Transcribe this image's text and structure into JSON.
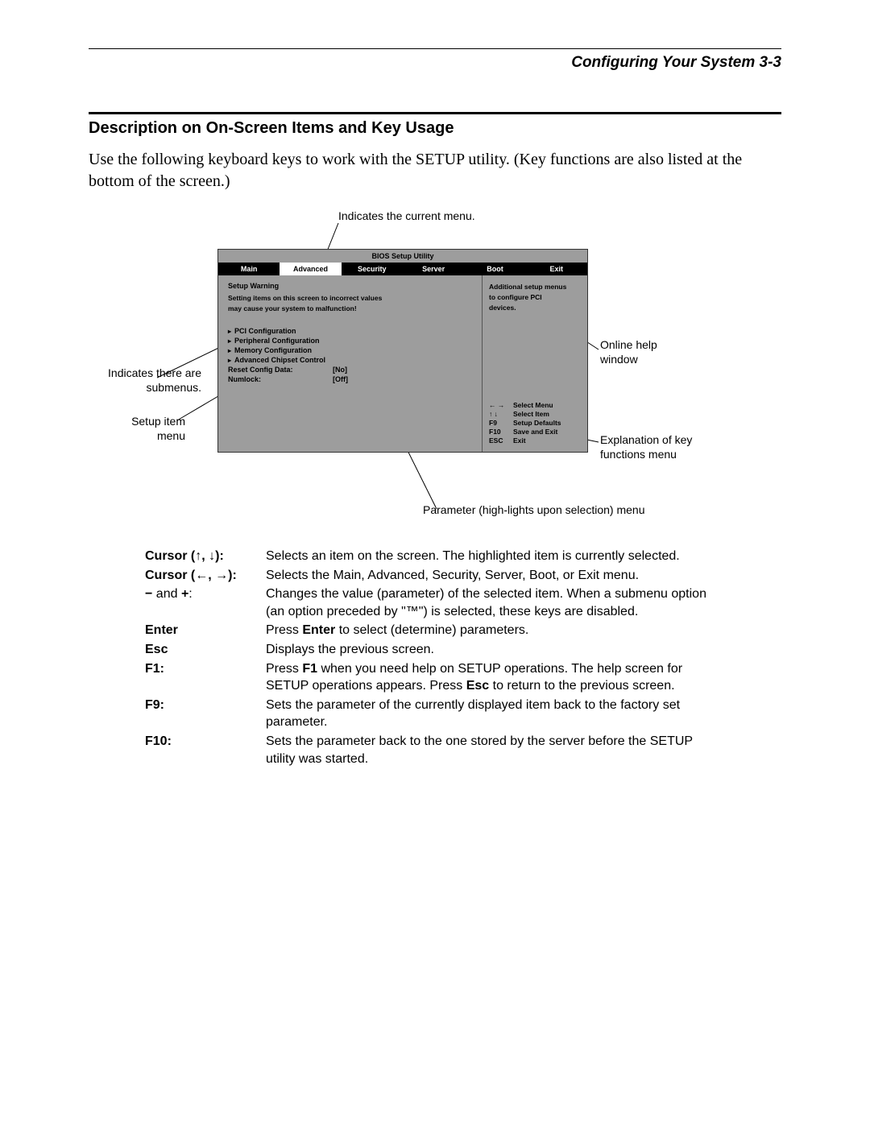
{
  "header": {
    "title": "Configuring Your System  3-3"
  },
  "section": {
    "title": "Description on On-Screen Items and Key Usage",
    "intro": "Use the following keyboard keys to work with the SETUP utility.  (Key functions are also listed at the bottom of the screen.)"
  },
  "callouts": {
    "top": "Indicates the current menu.",
    "submenus": "Indicates there are submenus.",
    "setup_item": "Setup item menu",
    "online_help": "Online help window",
    "keyfunc": "Explanation of key functions menu",
    "param": "Parameter (high-lights upon selection) menu"
  },
  "bios": {
    "title": "BIOS Setup Utility",
    "tabs": [
      "Main",
      "Advanced",
      "Security",
      "Server",
      "Boot",
      "Exit"
    ],
    "selected_tab_index": 1,
    "warn_title": "Setup Warning",
    "warn_text1": "Setting items on this screen to incorrect values",
    "warn_text2": "may cause your system to malfunction!",
    "items": [
      "PCI Configuration",
      "Peripheral Configuration",
      "Memory Configuration",
      "Advanced Chipset Control"
    ],
    "rows": [
      {
        "k": "Reset Config Data:",
        "v": "[No]"
      },
      {
        "k": "Numlock:",
        "v": "[Off]"
      }
    ],
    "help_top1": "Additional setup menus",
    "help_top2": "to configure PCI",
    "help_top3": "devices.",
    "keys": [
      {
        "kk": "← →",
        "kv": "Select Menu"
      },
      {
        "kk": "↑ ↓",
        "kv": "Select Item"
      },
      {
        "kk": "F9",
        "kv": "Setup Defaults"
      },
      {
        "kk": "F10",
        "kv": "Save and Exit"
      },
      {
        "kk": "ESC",
        "kv": "Exit"
      }
    ]
  },
  "key_table": [
    {
      "k": "Cursor (↑, ↓):",
      "v": "Selects an item on the screen.  The highlighted item is currently selected."
    },
    {
      "k": "Cursor (←, →):",
      "v": "Selects the Main, Advanced, Security, Server, Boot, or Exit menu."
    },
    {
      "k": "− and +:",
      "v": "Changes the value (parameter) of the selected item.  When a submenu option (an option preceded by \"™\") is selected, these keys are disabled."
    },
    {
      "k": "Enter",
      "v_html": "Press <b>Enter</b> to select (determine) parameters."
    },
    {
      "k": "Esc",
      "v": "Displays the previous screen."
    },
    {
      "k": "F1:",
      "v_html": "Press <b>F1</b> when you need help on SETUP operations.  The help screen for SETUP operations appears.  Press <b>Esc</b> to return to the previous screen."
    },
    {
      "k": "F9:",
      "v": "Sets the parameter of the currently displayed item back to the factory set parameter."
    },
    {
      "k": "F10:",
      "v": "Sets the parameter back to the one stored by the server before the SETUP utility was started."
    }
  ]
}
